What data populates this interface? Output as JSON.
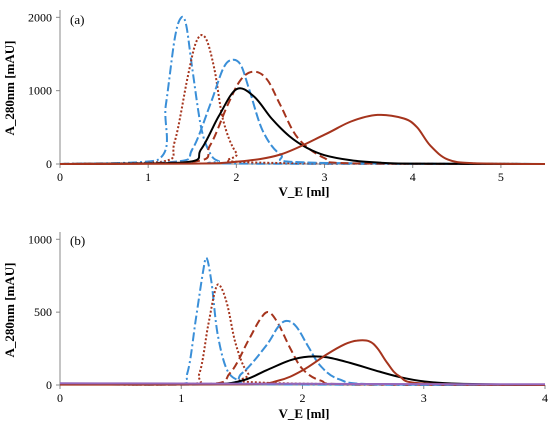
{
  "chart_data": [
    {
      "type": "line",
      "panel_label": "(a)",
      "xlabel": "V_E [ml]",
      "ylabel": "A_280nm [mAU]",
      "xlim": [
        0,
        5.5
      ],
      "ylim": [
        0,
        2100
      ],
      "xticks": [
        "0",
        "1",
        "2",
        "3",
        "4",
        "5"
      ],
      "yticks": [
        "0",
        "1000",
        "2000"
      ],
      "grid": false,
      "legend": "none",
      "series": [
        {
          "color": "#3A8FD8",
          "dash": "9 3 2 3",
          "x": [
            0.0,
            1.1,
            1.2,
            1.3,
            1.37,
            1.43,
            1.5,
            1.6,
            1.7,
            1.8,
            2.0,
            5.5
          ],
          "y": [
            0,
            50,
            800,
            1700,
            1990,
            1900,
            1300,
            500,
            150,
            40,
            5,
            0
          ]
        },
        {
          "color": "#A5341D",
          "dash": "2 2",
          "x": [
            0.0,
            1.15,
            1.3,
            1.45,
            1.55,
            1.65,
            1.75,
            1.85,
            2.0,
            2.2,
            5.5
          ],
          "y": [
            0,
            30,
            300,
            1200,
            1680,
            1720,
            1300,
            600,
            150,
            20,
            0
          ]
        },
        {
          "color": "#3A8FD8",
          "dash": "9 3",
          "x": [
            0.0,
            1.3,
            1.5,
            1.7,
            1.85,
            1.95,
            2.05,
            2.15,
            2.3,
            2.5,
            2.8,
            5.5
          ],
          "y": [
            0,
            30,
            200,
            800,
            1300,
            1420,
            1350,
            1000,
            450,
            130,
            20,
            0
          ]
        },
        {
          "color": "#A5341D",
          "dash": "8 4",
          "x": [
            0.0,
            1.5,
            1.7,
            1.9,
            2.05,
            2.2,
            2.35,
            2.5,
            2.7,
            3.0,
            3.3,
            5.5
          ],
          "y": [
            0,
            30,
            250,
            800,
            1150,
            1260,
            1150,
            800,
            350,
            80,
            10,
            0
          ]
        },
        {
          "color": "#000000",
          "dash": "",
          "x": [
            0.0,
            1.4,
            1.6,
            1.8,
            2.0,
            2.2,
            2.4,
            2.6,
            2.8,
            3.0,
            3.3,
            3.6,
            4.0,
            5.5
          ],
          "y": [
            0,
            20,
            200,
            650,
            1020,
            920,
            620,
            380,
            220,
            120,
            50,
            20,
            5,
            0
          ]
        },
        {
          "color": "#A5341D",
          "dash": "",
          "x": [
            0.0,
            1.5,
            2.0,
            2.5,
            3.0,
            3.3,
            3.6,
            3.9,
            4.05,
            4.2,
            4.4,
            4.7,
            5.5
          ],
          "y": [
            0,
            5,
            30,
            130,
            400,
            580,
            670,
            620,
            500,
            250,
            60,
            10,
            0
          ]
        }
      ]
    },
    {
      "type": "line",
      "panel_label": "(b)",
      "xlabel": "V_E [ml]",
      "ylabel": "A_280nm [mAU]",
      "xlim": [
        0,
        4
      ],
      "ylim": [
        0,
        1050
      ],
      "xticks": [
        "0",
        "1",
        "2",
        "3",
        "4"
      ],
      "yticks": [
        "0",
        "500",
        "1000"
      ],
      "grid": false,
      "legend": "none",
      "series": [
        {
          "color": "#3A8FD8",
          "dash": "9 3 2 3",
          "x": [
            0.0,
            0.95,
            1.05,
            1.12,
            1.18,
            1.21,
            1.25,
            1.3,
            1.38,
            1.5,
            1.7,
            4.0
          ],
          "y": [
            5,
            5,
            80,
            450,
            780,
            870,
            700,
            350,
            100,
            25,
            5,
            0
          ]
        },
        {
          "color": "#A5341D",
          "dash": "2 2",
          "x": [
            0.0,
            1.05,
            1.15,
            1.22,
            1.28,
            1.32,
            1.38,
            1.45,
            1.55,
            1.7,
            4.0
          ],
          "y": [
            5,
            5,
            80,
            400,
            650,
            680,
            550,
            280,
            80,
            15,
            0
          ]
        },
        {
          "color": "#A5341D",
          "dash": "8 4",
          "x": [
            0.0,
            1.2,
            1.4,
            1.55,
            1.65,
            1.72,
            1.8,
            1.9,
            2.0,
            2.15,
            2.4,
            4.0
          ],
          "y": [
            5,
            5,
            80,
            300,
            450,
            500,
            420,
            250,
            110,
            30,
            5,
            0
          ]
        },
        {
          "color": "#3A8FD8",
          "dash": "9 3",
          "x": [
            0.0,
            1.3,
            1.5,
            1.7,
            1.8,
            1.87,
            1.95,
            2.05,
            2.15,
            2.3,
            2.6,
            4.0
          ],
          "y": [
            5,
            5,
            80,
            270,
            400,
            440,
            400,
            260,
            130,
            40,
            5,
            0
          ]
        },
        {
          "color": "#000000",
          "dash": "",
          "x": [
            0.0,
            1.2,
            1.5,
            1.7,
            1.9,
            2.05,
            2.2,
            2.4,
            2.6,
            2.8,
            3.0,
            3.3,
            4.0
          ],
          "y": [
            5,
            5,
            30,
            100,
            170,
            195,
            190,
            150,
            100,
            55,
            25,
            8,
            0
          ]
        },
        {
          "color": "#A5341D",
          "dash": "",
          "x": [
            0.0,
            1.5,
            1.8,
            2.0,
            2.2,
            2.35,
            2.45,
            2.55,
            2.62,
            2.7,
            2.8,
            3.0,
            4.0
          ],
          "y": [
            3,
            5,
            30,
            100,
            210,
            280,
            305,
            300,
            250,
            150,
            60,
            10,
            0
          ]
        },
        {
          "color": "#9467BD",
          "dash": "",
          "x": [
            0.0,
            0.5,
            1.0,
            1.5,
            2.0,
            2.5,
            3.0,
            3.5,
            4.0
          ],
          "y": [
            12,
            11,
            10,
            9,
            8,
            7,
            6,
            5,
            5
          ]
        }
      ]
    }
  ]
}
